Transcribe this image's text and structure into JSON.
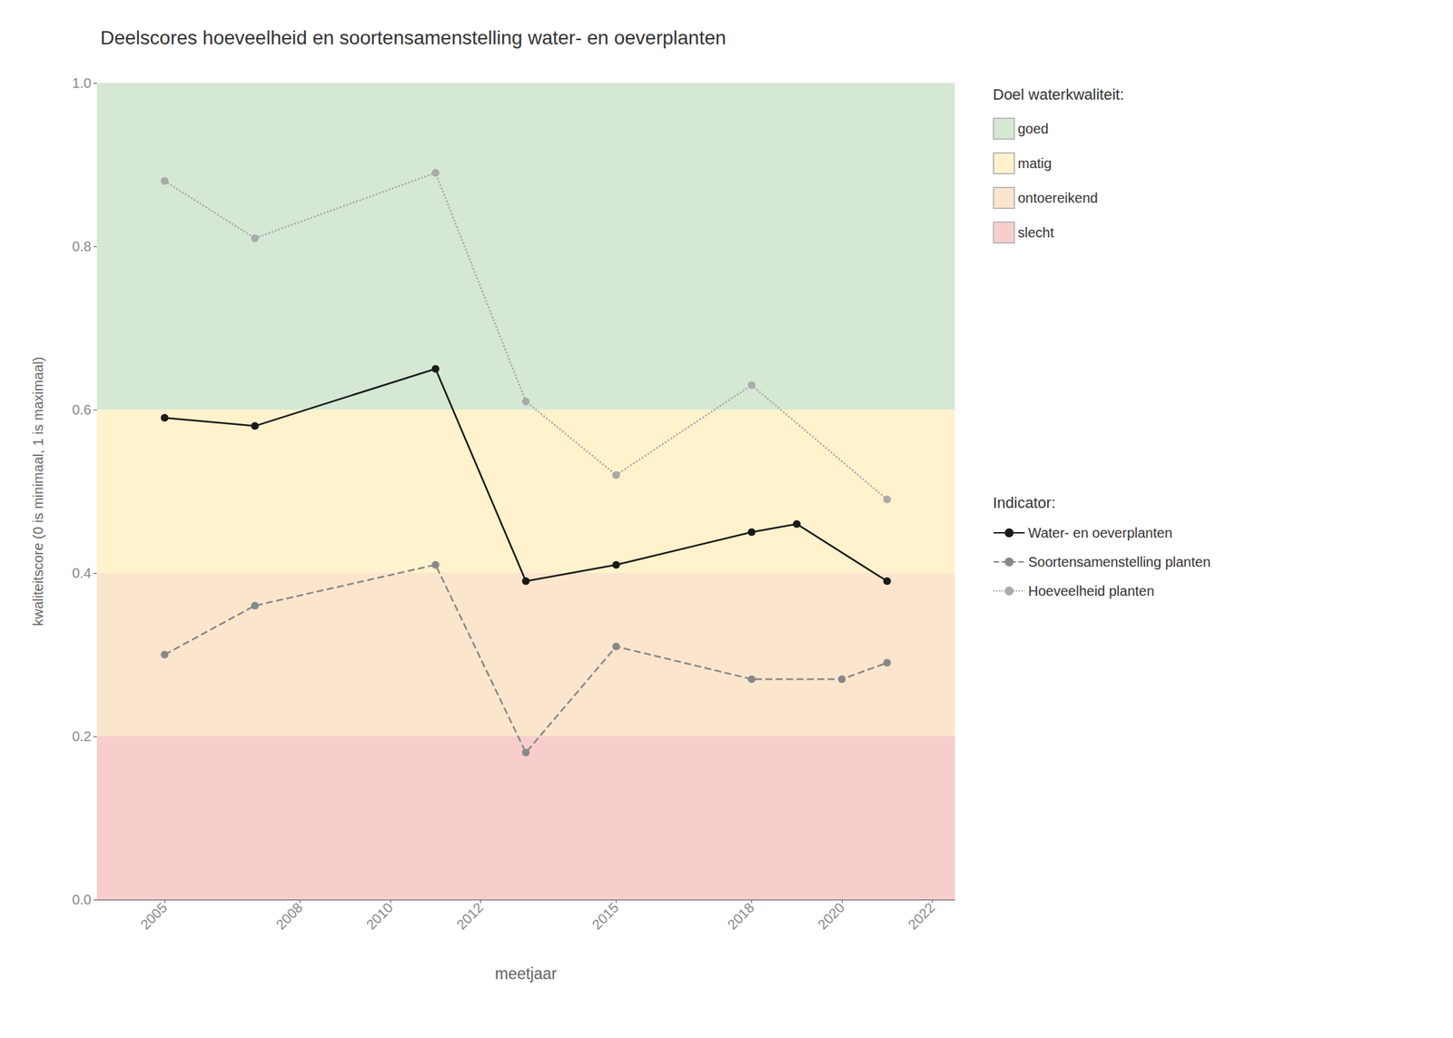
{
  "chart_data": {
    "type": "line",
    "title": "Deelscores hoeveelheid en soortensamenstelling water- en oeverplanten",
    "x_label": "meetjaar",
    "y_label": "kwaliteitscore (0 is minimaal, 1 is maximaal)",
    "xlim": [
      2003.5,
      2022.5
    ],
    "ylim": [
      0.0,
      1.0
    ],
    "xticks": [
      2005,
      2008,
      2010,
      2012,
      2015,
      2018,
      2020,
      2022
    ],
    "yticks": [
      {
        "value": 0.0,
        "label": "0.0"
      },
      0.2,
      0.4,
      0.6,
      0.8,
      {
        "value": 1.0,
        "label": "1.0"
      }
    ],
    "grid": true,
    "bands_title": "Doel waterkwaliteit:",
    "bands": [
      {
        "name": "goed",
        "from": 0.6,
        "to": 1.0,
        "color": "#d5e8d4"
      },
      {
        "name": "matig",
        "from": 0.4,
        "to": 0.6,
        "color": "#fff2cc"
      },
      {
        "name": "ontoereikend",
        "from": 0.2,
        "to": 0.4,
        "color": "#fce5cd"
      },
      {
        "name": "slecht",
        "from": 0.0,
        "to": 0.2,
        "color": "#f8cecc"
      }
    ],
    "series_title": "Indicator:",
    "series": [
      {
        "name": "Water- en oeverplanten",
        "color": "#1a1a1a",
        "line_style": "solid",
        "marker": "circle",
        "x": [
          2005,
          2007,
          2011,
          2013,
          2015,
          2018,
          2019,
          2021
        ],
        "values": [
          0.59,
          0.58,
          0.65,
          0.39,
          0.41,
          0.45,
          0.46,
          0.39
        ]
      },
      {
        "name": "Soortensamenstelling planten",
        "color": "#888888",
        "line_style": "dashed",
        "marker": "circle",
        "x": [
          2005,
          2007,
          2011,
          2013,
          2015,
          2018,
          2020,
          2021
        ],
        "values": [
          0.3,
          0.36,
          0.41,
          0.18,
          0.31,
          0.27,
          0.27,
          0.29
        ]
      },
      {
        "name": "Hoeveelheid planten",
        "color": "#aaaaaa",
        "line_style": "dotted",
        "marker": "circle",
        "x": [
          2005,
          2007,
          2011,
          2013,
          2015,
          2018,
          2021
        ],
        "values": [
          0.88,
          0.81,
          0.89,
          0.61,
          0.52,
          0.63,
          0.49
        ]
      }
    ]
  }
}
